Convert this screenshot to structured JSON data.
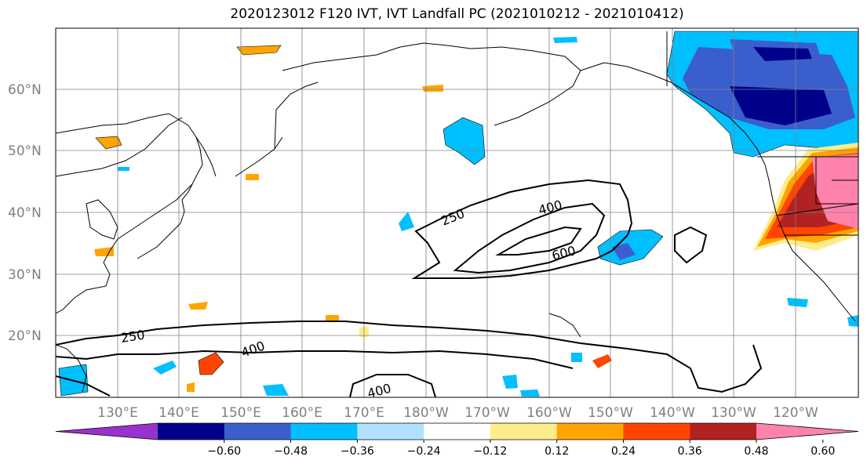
{
  "title": "2020123012 F120 IVT, IVT Landfall PC (2021010212 - 2021010412)",
  "lat_labels": [
    "60°N",
    "50°N",
    "40°N",
    "30°N",
    "20°N"
  ],
  "lon_labels": [
    "130°E",
    "140°E",
    "150°E",
    "160°E",
    "170°E",
    "180°W",
    "170°W",
    "160°W",
    "150°W",
    "140°W",
    "130°W",
    "120°W"
  ],
  "colorbar": {
    "ticks": [
      "−0.60",
      "−0.48",
      "−0.36",
      "−0.24",
      "−0.12",
      "0.12",
      "0.24",
      "0.36",
      "0.48",
      "0.60"
    ],
    "colors": [
      "#9932cc",
      "#00008b",
      "#3a5fcd",
      "#00bfff",
      "#b0e2ff",
      "#ffffff",
      "#ffec8b",
      "#ffa500",
      "#ff4500",
      "#b22222",
      "#ff82ab"
    ]
  },
  "contour_labels": [
    "250",
    "400",
    "600",
    "250",
    "400",
    "400"
  ]
}
